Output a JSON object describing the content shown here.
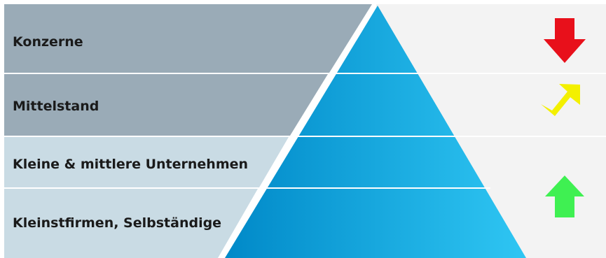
{
  "tiers": [
    {
      "label": "Konzerne",
      "trend": "down",
      "trend_color": "#e8101b",
      "band_color": "#9aabb7"
    },
    {
      "label": "Mittelstand",
      "trend": "up-right",
      "trend_color": "#f3f000",
      "band_color": "#9aabb7"
    },
    {
      "label": "Kleine & mittlere Unternehmen",
      "trend": "up",
      "trend_color": "#3ff052",
      "band_color": "#c9dbe4"
    },
    {
      "label": "Kleinstfirmen, Selbständige",
      "trend": "up",
      "trend_color": "#3ff052",
      "band_color": "#c9dbe4"
    }
  ],
  "colors": {
    "pyramid_light": "#2fc6f3",
    "pyramid_dark": "#0089c8",
    "right_panel": "#f3f3f3",
    "separator": "#ffffff"
  }
}
